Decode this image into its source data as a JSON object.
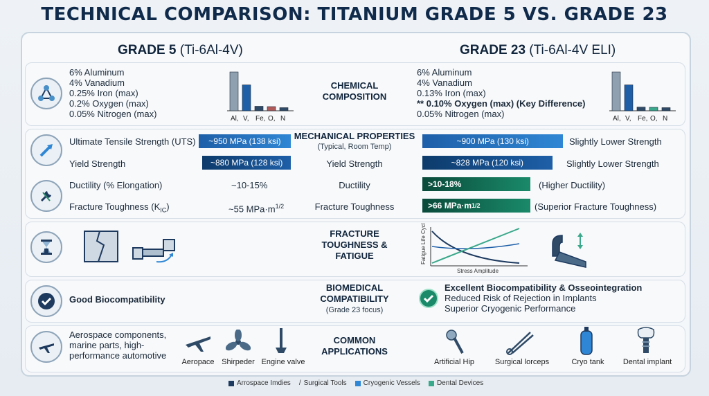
{
  "title": "TECHNICAL COMPARISON: TITANIUM GRADE 5 VS. GRADE 23",
  "left_header": {
    "bold": "GRADE 5",
    "sub": " (Ti-6Al-4V)"
  },
  "right_header": {
    "bold": "GRADE 23",
    "sub": " (Ti-6Al-4V ELI)"
  },
  "chemical": {
    "center": "CHEMICAL\nCOMPOSITION",
    "left_lines": [
      "6% Aluminum",
      "4% Vanadium",
      "0.25% Iron (max)",
      "0.2% Oxygen (max)",
      "0.05% Nitrogen (max)"
    ],
    "right_lines": [
      "6% Aluminum",
      "4% Vanadium",
      "0.13% Iron (max)",
      "** 0.10% Oxygen (max) (Key Difference)",
      "0.05% Nitrogen (max)"
    ],
    "element_labels": [
      "Al,",
      "V,",
      "Fe,",
      "O,",
      "N"
    ]
  },
  "chart_data": [
    {
      "type": "bar",
      "categories": [
        "Al",
        "V",
        "Fe",
        "O",
        "N"
      ],
      "values": [
        6,
        4,
        0.25,
        0.2,
        0.05
      ],
      "title": "",
      "xlabel": "",
      "ylabel": ""
    },
    {
      "type": "bar",
      "categories": [
        "Al",
        "V",
        "Fe",
        "O",
        "N"
      ],
      "values": [
        6,
        4,
        0.13,
        0.1,
        0.05
      ],
      "title": "",
      "xlabel": "",
      "ylabel": ""
    }
  ],
  "mechanical": {
    "center": "MECHANICAL PROPERTIES",
    "center_sub": "(Typical, Room Temp)",
    "rows": [
      {
        "left_label": "Ultimate Tensile Strength (UTS)",
        "left_val": "~950 MPa (138 ksi)",
        "center": "",
        "right_val": "~900 MPa (130 ksi)",
        "right_note": "Slightly Lower Strength",
        "left_pct": 0.95,
        "right_pct": 0.9
      },
      {
        "left_label": "Yield Strength",
        "left_val": "~880 MPa (128 ksi)",
        "center": "Yield Strength",
        "right_val": "~828 MPa (120 ksi)",
        "right_note": "Slightly Lower Strength",
        "left_pct": 0.88,
        "right_pct": 0.83
      },
      {
        "left_label": "Ductility (% Elongation)",
        "left_val": "~10-15%",
        "center": "Ductility",
        "right_val": ">10-18%",
        "right_note": "(Higher Ductility)"
      },
      {
        "left_label": "Fracture Toughness (K",
        "left_sub": "IC",
        "left_close": ")",
        "left_val": "~55 MPa·m",
        "left_sup": "1/2",
        "center": "Fracture Toughness",
        "right_val": ">66 MPa·m",
        "right_sup": "1/2",
        "right_note": "(Superior Fracture Toughness)"
      }
    ]
  },
  "fatigue": {
    "center": "FRACTURE\nTOUGHNESS &\nFATIGUE",
    "ylabel": "Fatigue Life Cycles",
    "xlabel": "Stress Amplitude"
  },
  "bio": {
    "center": "BIOMEDICAL\nCOMPATIBILITY",
    "center_sub": "(Grade 23 focus)",
    "left": "Good Biocompatibility",
    "right_lines": [
      "Excellent Biocompatibility & Osseointegration",
      "Reduced Risk of Rejection in Implants",
      "Superior Cryogenic Performance"
    ]
  },
  "apps": {
    "center": "COMMON\nAPPLICATIONS",
    "left_text": "Aerospace components, marine parts, high-performance automotive",
    "left_icons": [
      "Aeropace",
      "Shirpeder",
      "Engine valve"
    ],
    "right_icons": [
      "Artificial Hip",
      "Surgical lorceps",
      "Cryo tank",
      "Dental implant"
    ]
  },
  "legend": [
    {
      "label": "Arrospace Imdies",
      "color": "#1e3a5f"
    },
    {
      "label": "Surgical Tools",
      "color": "#555"
    },
    {
      "label": "Cryogenic Vessels",
      "color": "#2f86d4"
    },
    {
      "label": "Dental Devices",
      "color": "#3aa88a"
    }
  ]
}
